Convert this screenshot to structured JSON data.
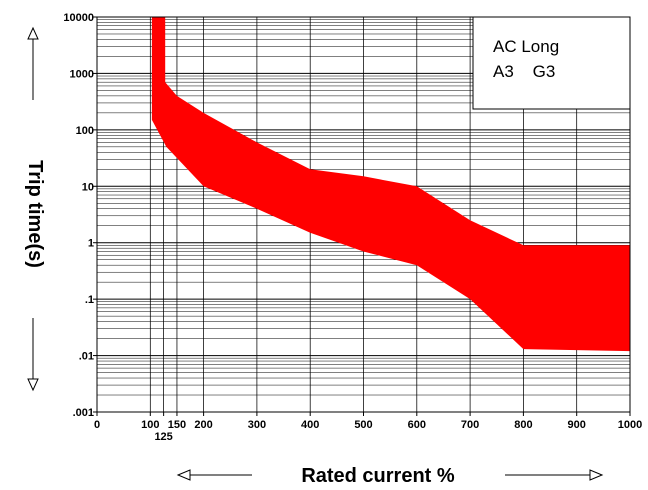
{
  "chart_data": {
    "type": "area",
    "xlabel": "Rated current %",
    "ylabel": "Trip time(s)",
    "x_axis": {
      "min": 0,
      "max": 1000,
      "scale": "linear",
      "tick_values": [
        0,
        100,
        125,
        150,
        200,
        300,
        400,
        500,
        600,
        700,
        800,
        900,
        1000
      ],
      "tick_labels": [
        "0",
        "100",
        "125",
        "150",
        "200",
        "300",
        "400",
        "500",
        "600",
        "700",
        "800",
        "900",
        "1000"
      ]
    },
    "y_axis": {
      "min": 0.001,
      "max": 10000,
      "scale": "log",
      "tick_values": [
        0.001,
        0.01,
        0.1,
        1,
        10,
        100,
        1000,
        10000
      ],
      "tick_labels": [
        ".001",
        ".01",
        ".1",
        "1",
        "10",
        "100",
        "1000",
        "10000"
      ]
    },
    "grid": true,
    "legend": {
      "placement": "top-right",
      "lines": [
        "AC Long",
        "A3    G3"
      ]
    },
    "band": {
      "color": "#ff0000",
      "upper": [
        {
          "x": 103,
          "y": 10000
        },
        {
          "x": 128,
          "y": 10000
        },
        {
          "x": 128,
          "y": 700
        },
        {
          "x": 150,
          "y": 400
        },
        {
          "x": 200,
          "y": 200
        },
        {
          "x": 300,
          "y": 60
        },
        {
          "x": 400,
          "y": 20
        },
        {
          "x": 500,
          "y": 15
        },
        {
          "x": 600,
          "y": 10
        },
        {
          "x": 650,
          "y": 5
        },
        {
          "x": 700,
          "y": 2.5
        },
        {
          "x": 800,
          "y": 0.9
        },
        {
          "x": 1000,
          "y": 0.9
        }
      ],
      "lower": [
        {
          "x": 103,
          "y": 150
        },
        {
          "x": 130,
          "y": 50
        },
        {
          "x": 200,
          "y": 10
        },
        {
          "x": 300,
          "y": 4
        },
        {
          "x": 400,
          "y": 1.5
        },
        {
          "x": 500,
          "y": 0.7
        },
        {
          "x": 600,
          "y": 0.4
        },
        {
          "x": 700,
          "y": 0.1
        },
        {
          "x": 800,
          "y": 0.013
        },
        {
          "x": 1000,
          "y": 0.012
        }
      ]
    }
  }
}
